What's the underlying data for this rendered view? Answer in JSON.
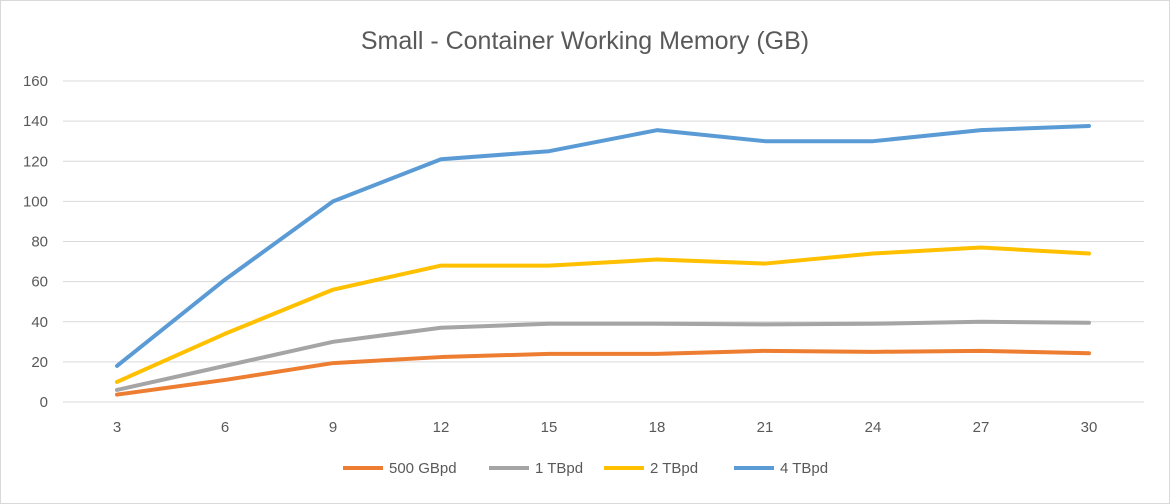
{
  "chart_data": {
    "type": "line",
    "title": "Small - Container Working Memory (GB)",
    "xlabel": "",
    "ylabel": "",
    "categories": [
      3,
      6,
      9,
      12,
      15,
      18,
      21,
      24,
      27,
      30
    ],
    "ylim": [
      0,
      160
    ],
    "yticks": [
      0,
      20,
      40,
      60,
      80,
      100,
      120,
      140,
      160
    ],
    "grid": true,
    "legend_position": "bottom",
    "series": [
      {
        "name": "500 GBpd",
        "color": "#ED7D31",
        "values": [
          3.7,
          11,
          19.4,
          22.4,
          24,
          24,
          25.5,
          25,
          25.5,
          24.3
        ]
      },
      {
        "name": "1 TBpd",
        "color": "#A5A5A5",
        "values": [
          6,
          18,
          30,
          37,
          39,
          39,
          38.7,
          39,
          40,
          39.5
        ]
      },
      {
        "name": "2 TBpd",
        "color": "#FFC000",
        "values": [
          10,
          34,
          56,
          68,
          68,
          71,
          69,
          74,
          77,
          74
        ]
      },
      {
        "name": "4 TBpd",
        "color": "#5B9BD5",
        "values": [
          18,
          61,
          100,
          121,
          125,
          135.5,
          130,
          130,
          135.5,
          137.6
        ]
      }
    ]
  }
}
